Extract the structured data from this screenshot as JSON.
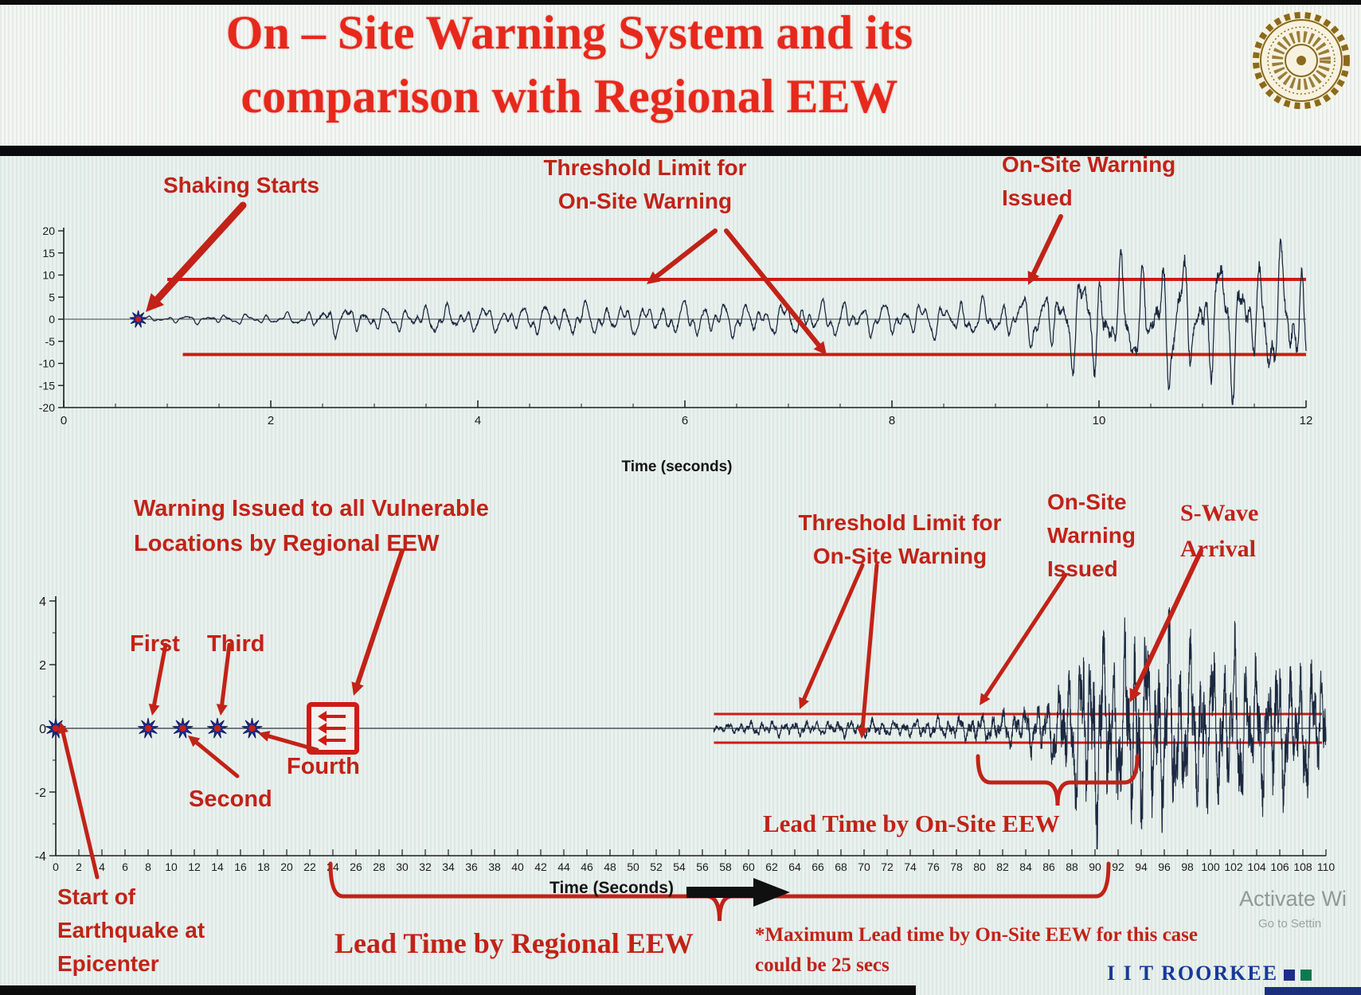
{
  "slide": {
    "title_line1": "On – Site Warning System and its",
    "title_line2": "comparison with Regional EEW",
    "footer_text": "I I T ROORKEE",
    "watermark_line1": "Activate Wi",
    "watermark_line2": "Go to Settin"
  },
  "labels_top": {
    "shaking_starts": "Shaking Starts",
    "threshold_line1": "Threshold Limit for",
    "threshold_line2": "On-Site Warning",
    "issued_line1": "On-Site Warning",
    "issued_line2": "Issued"
  },
  "labels_bottom": {
    "regional_line1": "Warning Issued to all Vulnerable",
    "regional_line2": "Locations by Regional EEW",
    "threshold_line1": "Threshold Limit for",
    "threshold_line2": "On-Site Warning",
    "issued_line1": "On-Site",
    "issued_line2": "Warning",
    "issued_line3": "Issued",
    "swave_line1": "S-Wave",
    "swave_line2": "Arrival",
    "first": "First",
    "second": "Second",
    "third": "Third",
    "fourth": "Fourth",
    "start_line1": "Start of",
    "start_line2": "Earthquake at",
    "start_line3": "Epicenter",
    "lead_onsite": "Lead Time by On-Site EEW",
    "lead_regional": "Lead Time by Regional EEW",
    "note_line1": "*Maximum Lead time by On-Site EEW for this case",
    "note_line2": "could be 25 secs"
  },
  "colors": {
    "title_red": "#e7281c",
    "annotation_red": "#c22217",
    "threshold_red": "#cd1c14",
    "waveform": "#1b2840",
    "marker_blue": "#1f2f9b",
    "footer_blue": "#16399b",
    "footer_green": "#0c7a4e",
    "axis": "#1e1e1e"
  },
  "chart_data": [
    {
      "id": "top-seismogram",
      "type": "line",
      "xlabel": "Time (seconds)",
      "ylabel": "",
      "xlim": [
        0,
        12
      ],
      "ylim": [
        -20,
        20
      ],
      "xticks": [
        0,
        2,
        4,
        6,
        8,
        10,
        12
      ],
      "minor_xtick_step": 0.5,
      "yticks": [
        20,
        15,
        10,
        5,
        0,
        -5,
        -10,
        -15,
        -20
      ],
      "grid": false,
      "threshold_upper": 9,
      "threshold_lower": -8,
      "threshold_start_t": 1.0,
      "shaking_start_t": 0.72,
      "onsite_warning_issued_t": 9.3,
      "signal_envelope": [
        [
          0.72,
          0.5
        ],
        [
          1.2,
          1.0
        ],
        [
          1.8,
          1.2
        ],
        [
          2.3,
          1.4
        ],
        [
          2.6,
          3.6
        ],
        [
          3.1,
          2.6
        ],
        [
          3.6,
          3.4
        ],
        [
          4.2,
          3.0
        ],
        [
          5.0,
          4.0
        ],
        [
          5.6,
          3.4
        ],
        [
          6.2,
          4.4
        ],
        [
          6.8,
          3.6
        ],
        [
          7.4,
          4.2
        ],
        [
          8.0,
          3.8
        ],
        [
          8.6,
          4.4
        ],
        [
          9.0,
          4.2
        ],
        [
          9.3,
          6.0
        ],
        [
          9.7,
          10.0
        ],
        [
          10.0,
          14.5
        ],
        [
          10.3,
          12.0
        ],
        [
          10.6,
          16.0
        ],
        [
          10.9,
          13.0
        ],
        [
          11.2,
          17.0
        ],
        [
          11.5,
          13.5
        ],
        [
          11.8,
          16.5
        ],
        [
          12.0,
          15.0
        ]
      ]
    },
    {
      "id": "bottom-seismogram",
      "type": "line",
      "xlabel": "Time (Seconds)",
      "ylabel": "",
      "xlim": [
        0,
        110
      ],
      "ylim": [
        -4,
        4
      ],
      "xticks": [
        0,
        2,
        4,
        6,
        8,
        10,
        12,
        14,
        16,
        18,
        20,
        22,
        24,
        26,
        28,
        30,
        32,
        34,
        36,
        38,
        40,
        42,
        44,
        46,
        48,
        50,
        52,
        54,
        56,
        58,
        60,
        62,
        64,
        66,
        68,
        70,
        72,
        74,
        76,
        78,
        80,
        82,
        84,
        86,
        88,
        90,
        92,
        94,
        96,
        98,
        100,
        102,
        104,
        106,
        108,
        110
      ],
      "yticks": [
        4,
        2,
        0,
        -2,
        -4
      ],
      "minor_ytick_step": 1,
      "grid": false,
      "threshold_upper": 0.45,
      "threshold_lower": -0.45,
      "threshold_start_t": 57,
      "p_wave_arrival_times": [
        0,
        8,
        11,
        14,
        17
      ],
      "p_wave_arrival_labels": [
        "Start of Earthquake at Epicenter",
        "First",
        "Second",
        "Third",
        "Fourth"
      ],
      "regional_warning_time": 24,
      "onsite_warning_issued_time": 80,
      "s_wave_arrival_time": 93,
      "max_onsite_lead_time_secs": 25,
      "signal_envelope": [
        [
          57,
          0.12
        ],
        [
          60,
          0.22
        ],
        [
          63,
          0.26
        ],
        [
          66,
          0.24
        ],
        [
          70,
          0.3
        ],
        [
          74,
          0.28
        ],
        [
          78,
          0.38
        ],
        [
          80,
          0.45
        ],
        [
          82,
          0.55
        ],
        [
          84,
          0.7
        ],
        [
          86,
          1.0
        ],
        [
          87.5,
          1.8
        ],
        [
          89,
          2.8
        ],
        [
          90.5,
          3.4
        ],
        [
          92,
          2.4
        ],
        [
          93.5,
          3.5
        ],
        [
          95,
          2.8
        ],
        [
          96.5,
          3.3
        ],
        [
          98,
          2.5
        ],
        [
          99.5,
          3.1
        ],
        [
          101,
          2.3
        ],
        [
          102.5,
          2.9
        ],
        [
          104,
          2.0
        ],
        [
          105.5,
          2.5
        ],
        [
          107,
          1.8
        ],
        [
          108.5,
          2.2
        ],
        [
          110,
          1.9
        ]
      ]
    }
  ]
}
